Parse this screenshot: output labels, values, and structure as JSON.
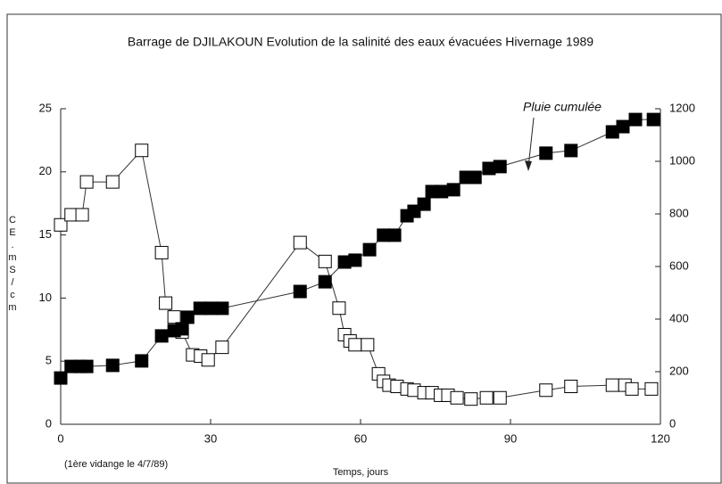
{
  "chart_data": {
    "type": "scatter",
    "title": "Barrage de DJILAKOUN  Evolution de la salinité des eaux évacuées Hivernage 1989",
    "xlabel": "Temps, jours",
    "ylabel": "CE.mS/cm",
    "annotations": [
      "Pluie cumulée",
      "(1ère vidange le 4/7/89)"
    ],
    "xlim": [
      0,
      120
    ],
    "xticks": [
      0,
      30,
      60,
      90,
      120
    ],
    "ylim": [
      0,
      25
    ],
    "yticks": [
      0,
      5,
      10,
      15,
      20,
      25
    ],
    "y2lim": [
      0,
      1200
    ],
    "y2ticks": [
      0,
      200,
      400,
      600,
      800,
      1000,
      1200
    ],
    "series": [
      {
        "color": "#ffffff",
        "x": [
          0,
          2.1,
          4.3,
          5.2,
          10.4,
          16.2,
          20.2,
          21,
          22.7,
          24.3,
          26.4,
          28,
          29.5,
          32.3,
          47.9,
          52.9,
          55.7,
          56.8,
          57.9,
          58.9,
          61.4,
          63.6,
          64.6,
          65.7,
          67.3,
          69.3,
          70.7,
          72.7,
          74.3,
          76,
          77.5,
          79.3,
          82.1,
          85.2,
          87.9,
          97.1,
          102.1,
          110.4,
          112.9,
          114.3,
          118.2
        ],
        "values": [
          15.8,
          16.6,
          16.6,
          19.2,
          19.2,
          21.7,
          13.6,
          9.6,
          8.5,
          7.3,
          5.5,
          5.4,
          5.1,
          6.1,
          14.4,
          12.9,
          9.2,
          7.1,
          6.6,
          6.3,
          6.3,
          4.0,
          3.4,
          3.1,
          3.0,
          2.8,
          2.7,
          2.5,
          2.5,
          2.3,
          2.3,
          2.1,
          2.0,
          2.1,
          2.1,
          2.7,
          3.0,
          3.1,
          3.1,
          2.8,
          2.8
        ]
      },
      {
        "color": "#000000",
        "axis": "y2",
        "x": [
          0,
          2.1,
          3.9,
          5.2,
          10.4,
          16.2,
          20.2,
          22.7,
          24.3,
          25.4,
          27.9,
          30,
          32.3,
          47.9,
          52.9,
          56.8,
          58.9,
          61.8,
          64.6,
          66.8,
          69.3,
          70.7,
          72.7,
          74.3,
          76.2,
          78.6,
          81.1,
          82.9,
          85.7,
          87.9,
          97.1,
          102.1,
          110.4,
          112.5,
          115,
          118.6
        ],
        "values": [
          176,
          220,
          220,
          220,
          224,
          241,
          336,
          356,
          363,
          407,
          441,
          441,
          441,
          505,
          542,
          617,
          624,
          664,
          719,
          719,
          793,
          810,
          837,
          885,
          885,
          892,
          939,
          939,
          973,
          980,
          1031,
          1041,
          1112,
          1132,
          1159,
          1159
        ]
      }
    ]
  }
}
